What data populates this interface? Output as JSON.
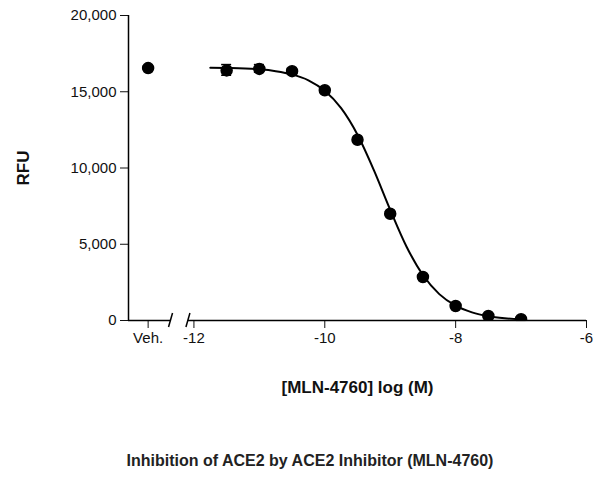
{
  "chart_data": {
    "type": "scatter",
    "title": "Inhibition of ACE2 by ACE2 Inhibitor (MLN-4760)",
    "x_label": "[MLN-4760] log (M)",
    "y_label": "RFU",
    "x": [
      -12.7,
      -11.5,
      -11,
      -10.5,
      -10,
      -9.5,
      -9,
      -8.5,
      -8,
      -7.5,
      -7
    ],
    "values": [
      16550,
      16400,
      16500,
      16350,
      15100,
      11850,
      7000,
      2850,
      950,
      300,
      80
    ],
    "errors": [
      100,
      350,
      250,
      150,
      100,
      100,
      100,
      100,
      100,
      100,
      100
    ],
    "curve": {
      "x": [
        -11.75,
        -11.5,
        -11,
        -10.75,
        -10.5,
        -10.25,
        -10,
        -9.75,
        -9.5,
        -9.25,
        -9,
        -8.75,
        -8.5,
        -8.25,
        -8,
        -7.75,
        -7.5,
        -7.25,
        -7
      ],
      "values": [
        16580,
        16560,
        16470,
        16350,
        16140,
        15750,
        15060,
        13920,
        12180,
        9860,
        7260,
        4840,
        2980,
        1730,
        970,
        530,
        280,
        150,
        80
      ]
    },
    "color": "#000000",
    "marker": "circle",
    "xlim": [
      -13,
      -6
    ],
    "xticks": [
      {
        "value": -12.7,
        "label": "Veh."
      },
      -12,
      -10,
      -8,
      -6
    ],
    "ylim": [
      0,
      20000
    ],
    "yticks": [
      0,
      {
        "value": 5000,
        "label": "5,000"
      },
      {
        "value": 10000,
        "label": "10,000"
      },
      {
        "value": 15000,
        "label": "15,000"
      },
      {
        "value": 20000,
        "label": "20,000"
      }
    ],
    "grid": false
  }
}
